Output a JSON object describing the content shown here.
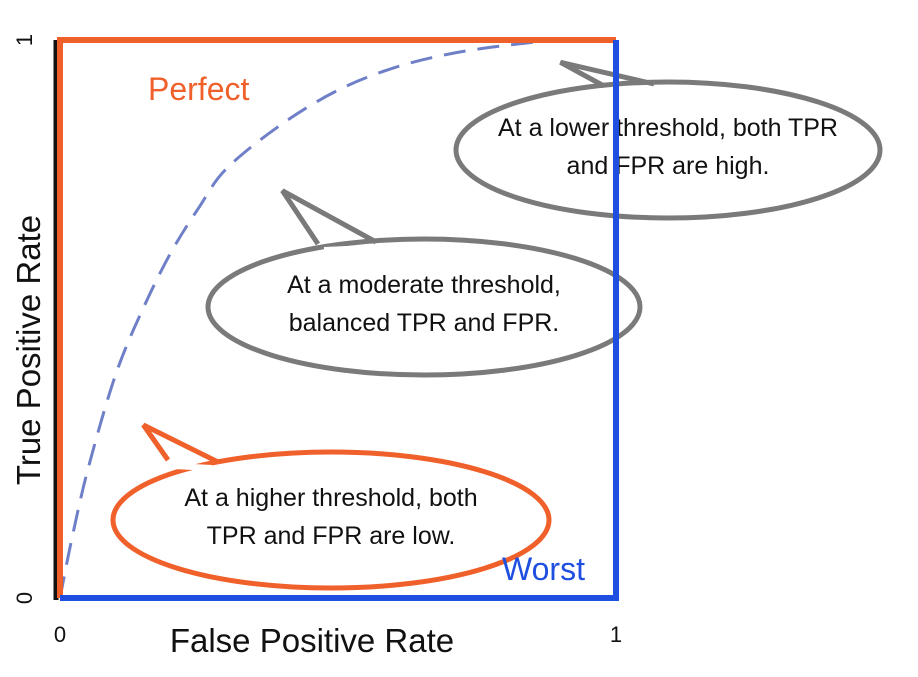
{
  "chart_data": {
    "type": "line",
    "xlabel": "False Positive Rate",
    "ylabel": "True Positive Rate",
    "xlim": [
      0,
      1
    ],
    "ylim": [
      0,
      1
    ],
    "x_ticks": [
      "0",
      "1"
    ],
    "y_ticks": [
      "0",
      "1"
    ],
    "grid": false,
    "series": [
      {
        "name": "Perfect",
        "style": "solid",
        "color": "#f0602a",
        "points": [
          [
            0,
            0
          ],
          [
            0,
            1
          ],
          [
            1,
            1
          ]
        ]
      },
      {
        "name": "Worst",
        "style": "solid",
        "color": "#1f4fe0",
        "points": [
          [
            0,
            0
          ],
          [
            1,
            0
          ],
          [
            1,
            1
          ]
        ]
      },
      {
        "name": "",
        "style": "dashed",
        "color": "#6f80c8",
        "points": [
          [
            0,
            0
          ],
          [
            0.02,
            0.1
          ],
          [
            0.05,
            0.23
          ],
          [
            0.1,
            0.4
          ],
          [
            0.15,
            0.52
          ],
          [
            0.2,
            0.62
          ],
          [
            0.25,
            0.7
          ],
          [
            0.3,
            0.77
          ],
          [
            0.4,
            0.85
          ],
          [
            0.5,
            0.91
          ],
          [
            0.6,
            0.95
          ],
          [
            0.7,
            0.975
          ],
          [
            0.8,
            0.99
          ],
          [
            0.9,
            1.0
          ],
          [
            1,
            1
          ]
        ]
      }
    ],
    "annotations": [
      {
        "text_lines": [
          "At a higher threshold, both",
          "TPR and FPR are low."
        ],
        "color": "#f0602a",
        "points_to": [
          0.15,
          0.31
        ]
      },
      {
        "text_lines": [
          "At a moderate threshold,",
          "balanced TPR and FPR."
        ],
        "color": "#7a7a7a",
        "points_to": [
          0.4,
          0.73
        ]
      },
      {
        "text_lines": [
          "At a lower threshold, both TPR",
          "and FPR are high."
        ],
        "color": "#7a7a7a",
        "points_to": [
          0.9,
          0.96
        ]
      }
    ],
    "labels": {
      "perfect": "Perfect",
      "worst": "Worst"
    },
    "colors": {
      "perfect": "#f0602a",
      "worst": "#1f4fe0",
      "curve": "#6f80c8",
      "callout_gray": "#7a7a7a",
      "axis": "#111111"
    }
  }
}
